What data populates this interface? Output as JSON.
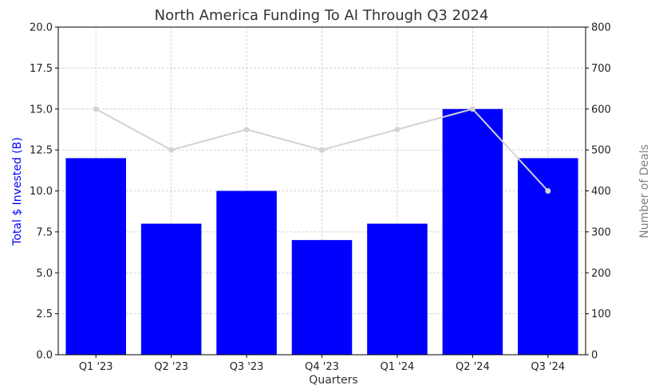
{
  "chart_data": {
    "type": "bar",
    "title": "North America Funding To AI Through Q3 2024",
    "xlabel": "Quarters",
    "categories": [
      "Q1 '23",
      "Q2 '23",
      "Q3 '23",
      "Q4 '23",
      "Q1 '24",
      "Q2 '24",
      "Q3 '24"
    ],
    "series": [
      {
        "name": "Total $ Invested (B)",
        "type": "bar",
        "axis": "left",
        "color": "#0000ff",
        "values": [
          12,
          8,
          10,
          7,
          8,
          15,
          12
        ]
      },
      {
        "name": "Number of Deals",
        "type": "line",
        "axis": "right",
        "color": "#d3d3d3",
        "values": [
          600,
          500,
          550,
          500,
          550,
          600,
          400
        ]
      }
    ],
    "y_left": {
      "label": "Total $ Invested (B)",
      "color": "#0000ff",
      "ylim": [
        0,
        20
      ],
      "ticks": [
        "0.0",
        "2.5",
        "5.0",
        "7.5",
        "10.0",
        "12.5",
        "15.0",
        "17.5",
        "20.0"
      ]
    },
    "y_right": {
      "label": "Number of Deals",
      "color": "#808080",
      "ylim": [
        0,
        800
      ],
      "ticks": [
        "0",
        "100",
        "200",
        "300",
        "400",
        "500",
        "600",
        "700",
        "800"
      ]
    },
    "grid": true
  }
}
